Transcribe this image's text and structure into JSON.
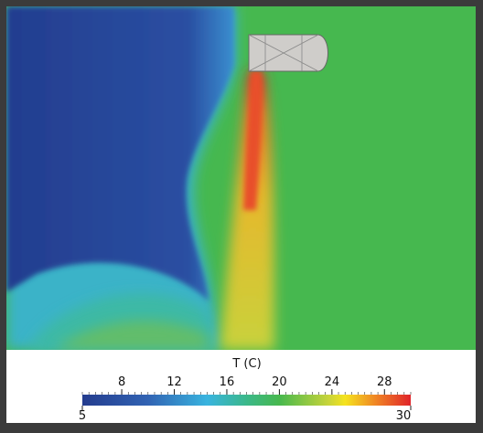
{
  "colorbar": {
    "title": "T (C)",
    "min": 5,
    "max": 30,
    "ticks": [
      8,
      12,
      16,
      20,
      24,
      28
    ]
  }
}
